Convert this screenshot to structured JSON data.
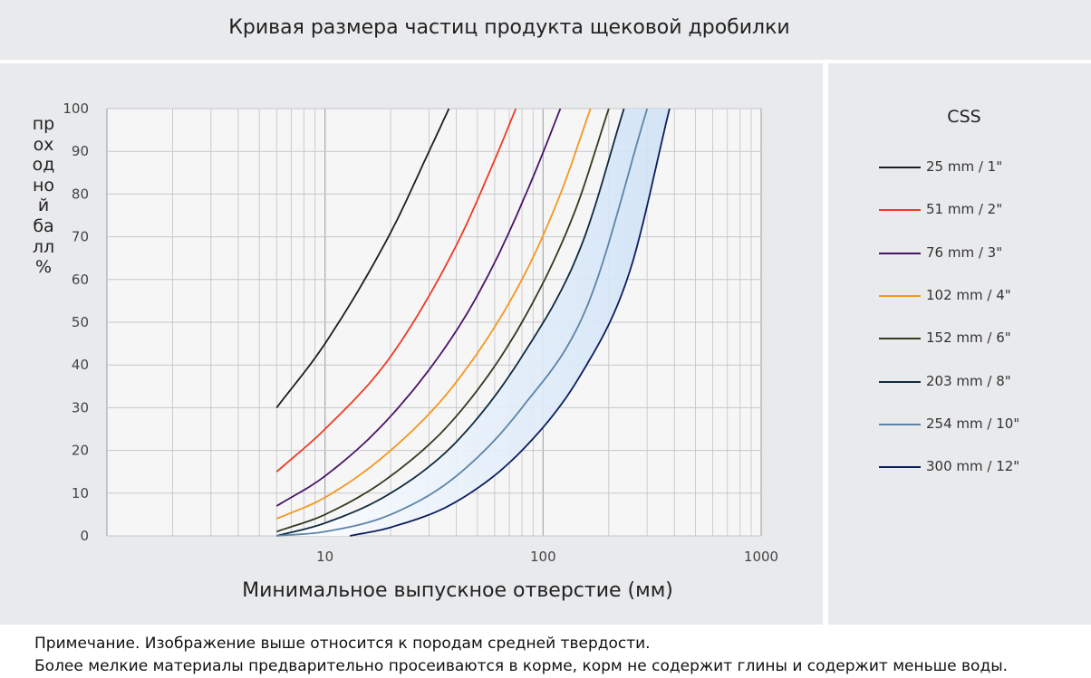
{
  "title": "Кривая размера частиц продукта щековой дробилки",
  "chart_data": {
    "type": "line",
    "title": "Кривая размера частиц продукта щековой дробилки",
    "xlabel": "Минимальное выпускное отверстие (мм)",
    "ylabel": "проходной балл %",
    "xscale": "log",
    "xlim": [
      1,
      1000
    ],
    "ylim": [
      0,
      100
    ],
    "xticks": [
      "10",
      "100",
      "1000"
    ],
    "yticks": [
      "0",
      "10",
      "20",
      "30",
      "40",
      "50",
      "60",
      "70",
      "80",
      "90",
      "100"
    ],
    "grid": true,
    "legend_title": "CSS",
    "legend_position": "right",
    "series": [
      {
        "name": "25 mm / 1\"",
        "color": "#1e1e1e",
        "x": [
          6,
          10,
          20,
          30,
          37
        ],
        "y": [
          30,
          45,
          71,
          90,
          100
        ]
      },
      {
        "name": "51 mm / 2\"",
        "color": "#ee3b22",
        "x": [
          6,
          10,
          20,
          40,
          60,
          75
        ],
        "y": [
          15,
          25,
          42,
          68,
          88,
          100
        ]
      },
      {
        "name": "76 mm / 3\"",
        "color": "#4a1466",
        "x": [
          6,
          10,
          20,
          40,
          60,
          90,
          120
        ],
        "y": [
          7,
          14,
          28,
          48,
          64,
          84,
          100
        ]
      },
      {
        "name": "102 mm / 4\"",
        "color": "#f5961e",
        "x": [
          6,
          10,
          20,
          40,
          80,
          120,
          165
        ],
        "y": [
          4,
          9,
          20,
          36,
          60,
          80,
          100
        ]
      },
      {
        "name": "152 mm / 6\"",
        "color": "#333a1e",
        "x": [
          6,
          10,
          20,
          40,
          80,
          140,
          200
        ],
        "y": [
          1,
          5,
          14,
          28,
          50,
          76,
          100
        ]
      },
      {
        "name": "203 mm / 8\"",
        "color": "#0f2a3e",
        "x": [
          6,
          10,
          20,
          40,
          80,
          150,
          235
        ],
        "y": [
          0,
          3,
          10,
          22,
          42,
          68,
          100
        ]
      },
      {
        "name": "254 mm / 10\"",
        "color": "#5b84a8",
        "x": [
          6,
          10,
          20,
          40,
          80,
          160,
          300
        ],
        "y": [
          0,
          1,
          5,
          14,
          30,
          54,
          100
        ]
      },
      {
        "name": "300 mm / 12\"",
        "color": "#0b1e5c",
        "x": [
          13,
          20,
          40,
          80,
          150,
          250,
          380
        ],
        "y": [
          0,
          2,
          8,
          20,
          38,
          62,
          100
        ]
      }
    ]
  },
  "notes": [
    "Примечание. Изображение выше относится к породам средней твердости.",
    "Более мелкие материалы предварительно просеиваются в корме, корм не содержит глины и содержит меньше воды."
  ]
}
